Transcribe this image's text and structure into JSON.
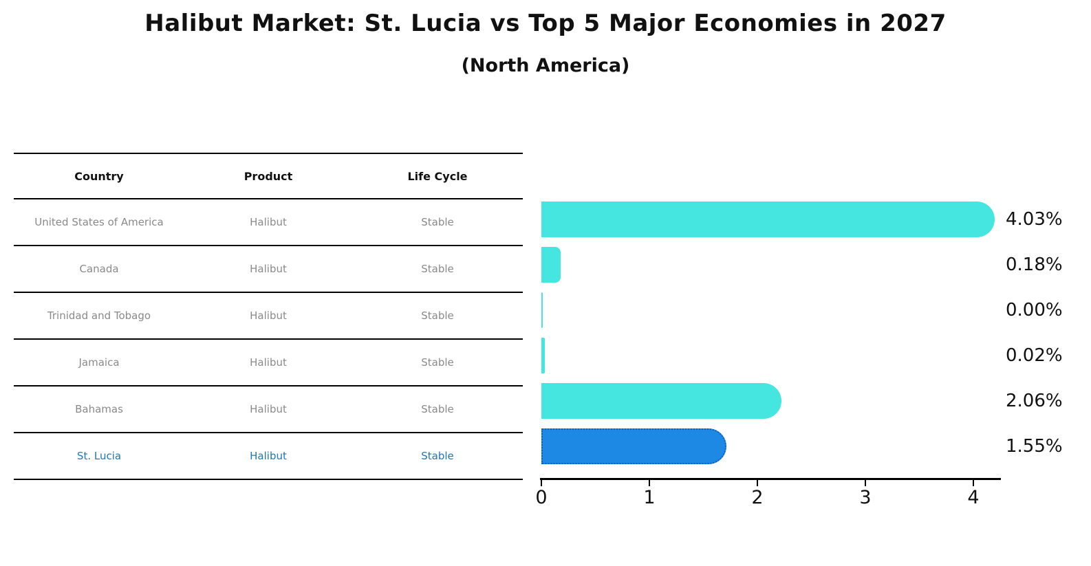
{
  "title": "Halibut Market: St. Lucia vs Top 5 Major Economies in 2027",
  "subtitle": "(North America)",
  "table": {
    "headers": [
      "Country",
      "Product",
      "Life Cycle"
    ],
    "rows": [
      {
        "country": "United States of America",
        "product": "Halibut",
        "life_cycle": "Stable"
      },
      {
        "country": "Canada",
        "product": "Halibut",
        "life_cycle": "Stable"
      },
      {
        "country": "Trinidad and Tobago",
        "product": "Halibut",
        "life_cycle": "Stable"
      },
      {
        "country": "Jamaica",
        "product": "Halibut",
        "life_cycle": "Stable"
      },
      {
        "country": "Bahamas",
        "product": "Halibut",
        "life_cycle": "Stable"
      },
      {
        "country": "St. Lucia",
        "product": "Halibut",
        "life_cycle": "Stable"
      }
    ]
  },
  "chart_data": {
    "type": "bar",
    "orientation": "horizontal",
    "categories": [
      "United States of America",
      "Canada",
      "Trinidad and Tobago",
      "Jamaica",
      "Bahamas",
      "St. Lucia"
    ],
    "values": [
      4.03,
      0.18,
      0.0,
      0.02,
      2.06,
      1.55
    ],
    "value_labels": [
      "4.03%",
      "0.18%",
      "0.00%",
      "0.02%",
      "2.06%",
      "1.55%"
    ],
    "x_ticks": [
      "0",
      "1",
      "2",
      "3",
      "4"
    ],
    "x_tick_values": [
      0,
      1,
      2,
      3,
      4
    ],
    "xlim": [
      0,
      4.3
    ],
    "grid": false,
    "legend": false,
    "bar_color": "#45E5E0",
    "highlight_color": "#1E88E5",
    "highlight_border_color": "#1060C4",
    "highlight_index": 5,
    "highlight_text_color": "#1f77b4"
  }
}
